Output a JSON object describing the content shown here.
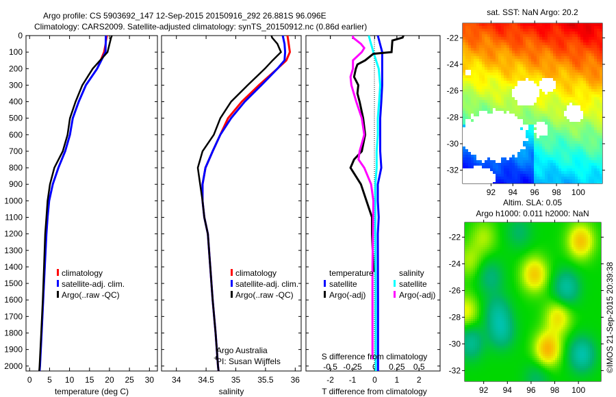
{
  "title_line1": "Argo profile: CS 5903692_147 12-Sep-2015 20150916_292 26.881S 96.096E",
  "title_line2": "Climatology: CARS2009. Satellite-adjusted climatology: synTS_20150912.nc (0.86d earlier)",
  "stamp": "©IMOS 21-Sep-2015 20:39:38",
  "credit": {
    "line1": "Argo Australia",
    "line2": "PI: Susan Wijffels"
  },
  "colors": {
    "climatology": "#ff0000",
    "satellite": "#0000ff",
    "argo": "#000000",
    "sal_satellite": "#00ffff",
    "sal_argo": "#ff00ff"
  },
  "chart_data": [
    {
      "type": "line",
      "name": "temperature-profile",
      "xlabel": "temperature (deg C)",
      "ylabel": "",
      "xlim": [
        -0.9,
        32
      ],
      "ylim": [
        0,
        2030
      ],
      "xticks": [
        "0",
        "5",
        "10",
        "15",
        "20",
        "25",
        "30"
      ],
      "yticks": [
        "0",
        "100",
        "200",
        "300",
        "400",
        "500",
        "600",
        "700",
        "800",
        "900",
        "1000",
        "1100",
        "1200",
        "1300",
        "1400",
        "1500",
        "1600",
        "1700",
        "1800",
        "1900",
        "2000"
      ],
      "legend": [
        "climatology",
        "satellite-adj. clim.",
        "Argo(..raw -QC)"
      ],
      "series": [
        {
          "name": "climatology",
          "depth": [
            0,
            100,
            200,
            300,
            400,
            500,
            600,
            700,
            800,
            900,
            1000,
            1100,
            1200,
            1400,
            1600,
            1800,
            2000,
            2030
          ],
          "values": [
            19.4,
            18.6,
            16.9,
            14.1,
            12.3,
            10.8,
            10.1,
            8.9,
            7.2,
            5.8,
            4.9,
            4.5,
            4.2,
            3.8,
            3.4,
            3.0,
            2.6,
            2.5
          ]
        },
        {
          "name": "satellite-adj. clim.",
          "depth": [
            0,
            100,
            200,
            300,
            400,
            500,
            600,
            700,
            800,
            900,
            1000,
            1100,
            1200,
            1400,
            1600,
            1800,
            2000,
            2030
          ],
          "values": [
            19.1,
            19.0,
            16.9,
            14.1,
            12.3,
            10.8,
            10.1,
            8.9,
            7.2,
            5.8,
            4.9,
            4.5,
            4.2,
            3.8,
            3.4,
            3.0,
            2.6,
            2.5
          ]
        },
        {
          "name": "Argo(..raw -QC)",
          "depth": [
            0,
            12,
            100,
            200,
            300,
            400,
            500,
            600,
            700,
            800,
            900,
            1000,
            1100,
            1200,
            1400,
            1600,
            1800,
            2000,
            2030
          ],
          "values": [
            20.6,
            20.4,
            19.5,
            15.8,
            13.2,
            11.5,
            10.1,
            9.5,
            8.3,
            6.2,
            5.1,
            4.5,
            4.2,
            3.9,
            3.6,
            3.3,
            2.9,
            2.5,
            2.4
          ]
        }
      ]
    },
    {
      "type": "line",
      "name": "salinity-profile",
      "xlabel": "salinity",
      "xlim": [
        33.75,
        36.1
      ],
      "ylim": [
        0,
        2030
      ],
      "xticks": [
        "34",
        "34.5",
        "35",
        "35.5",
        "36"
      ],
      "legend": [
        "climatology",
        "satellite-adj. clim.",
        "Argo(..raw -QC)"
      ],
      "series": [
        {
          "name": "climatology",
          "depth": [
            0,
            50,
            100,
            150,
            200,
            300,
            400,
            500,
            600,
            700,
            800,
            900,
            1000,
            1100,
            1200,
            1400,
            1600,
            1800,
            2000,
            2030
          ],
          "values": [
            35.87,
            35.89,
            35.91,
            35.85,
            35.7,
            35.39,
            35.1,
            34.87,
            34.74,
            34.61,
            34.49,
            34.44,
            34.44,
            34.47,
            34.53,
            34.57,
            34.61,
            34.66,
            34.7,
            34.71
          ]
        },
        {
          "name": "satellite-adj. clim.",
          "depth": [
            0,
            50,
            100,
            150,
            200,
            300,
            400,
            500,
            600,
            700,
            800,
            900,
            1000,
            1100,
            1200,
            1400,
            1600,
            1800,
            2000,
            2030
          ],
          "values": [
            35.79,
            35.82,
            35.83,
            35.82,
            35.7,
            35.43,
            35.15,
            34.92,
            34.74,
            34.61,
            34.49,
            34.44,
            34.44,
            34.47,
            34.53,
            34.57,
            34.61,
            34.66,
            34.7,
            34.71
          ]
        },
        {
          "name": "Argo(..raw -QC)",
          "depth": [
            0,
            12,
            50,
            100,
            150,
            200,
            300,
            400,
            500,
            600,
            700,
            800,
            900,
            1000,
            1100,
            1200,
            1400,
            1600,
            1800,
            2000,
            2030
          ],
          "values": [
            35.6,
            35.61,
            35.7,
            35.76,
            35.62,
            35.49,
            35.2,
            34.92,
            34.74,
            34.63,
            34.44,
            34.36,
            34.4,
            34.44,
            34.47,
            34.53,
            34.57,
            34.61,
            34.66,
            34.7,
            34.71
          ]
        }
      ]
    },
    {
      "type": "line",
      "name": "difference-profile",
      "xlabel": "T difference from climatology",
      "x2label": "S difference from climatology",
      "xlim": [
        -3.1,
        2.95
      ],
      "ylim": [
        0,
        2030
      ],
      "xticks": [
        "-2",
        "-1",
        "0",
        "1",
        "2"
      ],
      "x2ticks": [
        "-0.5",
        "-0.25",
        "0",
        "0.25",
        "0.5"
      ],
      "legend_temperature_title": "temperature",
      "legend_salinity_title": "salinity",
      "legend_temperature": [
        "satellite",
        "Argo(-adj)"
      ],
      "legend_salinity": [
        "satellite",
        "Argo(-adj)"
      ],
      "series": [
        {
          "name": "T satellite",
          "depth": [
            0,
            100,
            200,
            300,
            400,
            500,
            600,
            700,
            800,
            900,
            1000,
            1100,
            1200,
            1600,
            2030
          ],
          "values": [
            0.14,
            0.34,
            0.34,
            0.34,
            0.3,
            0.25,
            0.25,
            0.25,
            0.3,
            0.14,
            0.14,
            0.18,
            0.14,
            0.15,
            0.15
          ]
        },
        {
          "name": "S satellite (x4)",
          "depth": [
            0,
            100,
            200,
            300,
            400,
            500,
            600,
            700,
            800,
            900,
            1000,
            1200,
            1600,
            2030
          ],
          "values": [
            -0.27,
            -0.06,
            0.18,
            0.25,
            0.2,
            0.14,
            0.14,
            0.09,
            0.09,
            0.03,
            0.03,
            0.03,
            0.05,
            0.05
          ]
        },
        {
          "name": "T Argo(-adj)",
          "depth": [
            0,
            12,
            30,
            100,
            110,
            150,
            175,
            200,
            250,
            300,
            350,
            400,
            500,
            600,
            700,
            750,
            800,
            900,
            1000,
            1100,
            1200,
            1430
          ],
          "values": [
            1.3,
            1.26,
            0.8,
            0.76,
            -0.06,
            -0.43,
            -0.78,
            -0.85,
            -0.93,
            -0.74,
            -0.78,
            -0.68,
            -0.52,
            -0.43,
            -0.58,
            -0.93,
            -1.09,
            -0.62,
            -0.37,
            -0.12,
            -0.12,
            -0.05
          ]
        },
        {
          "name": "S Argo(-adj) (x4)",
          "depth": [
            0,
            12,
            50,
            75,
            100,
            150,
            200,
            250,
            300,
            400,
            500,
            600,
            700,
            750,
            800,
            900,
            1000,
            1400,
            1960
          ],
          "values": [
            -0.98,
            -0.98,
            -0.62,
            -0.47,
            -0.58,
            -0.98,
            -0.98,
            -1.09,
            -1.05,
            -0.83,
            -0.58,
            -0.47,
            -0.68,
            -0.73,
            -0.47,
            -0.16,
            -0.06,
            -0.1,
            -0.1
          ]
        }
      ]
    },
    {
      "type": "heatmap",
      "name": "sst-map",
      "title": "sat. SST: NaN Argo: 20.2",
      "lon_range": [
        89.4,
        102.2
      ],
      "lat_range": [
        -33.0,
        -20.9
      ],
      "xticks": [
        "92",
        "94",
        "96",
        "98",
        "100"
      ],
      "yticks": [
        "-22",
        "-24",
        "-26",
        "-28",
        "-30",
        "-32"
      ],
      "nan_regions": [
        [
          92.3,
          -29.4,
          3.0,
          1.9
        ],
        [
          95.2,
          -26.2,
          1.2,
          1.0
        ],
        [
          97.2,
          -25.6,
          0.7,
          0.6
        ],
        [
          90.6,
          -32.6,
          1.8,
          0.9
        ],
        [
          99.6,
          -27.7,
          0.8,
          0.7
        ],
        [
          89.9,
          -24.6,
          0.3,
          0.2
        ],
        [
          96.6,
          -28.9,
          0.6,
          0.6
        ]
      ]
    },
    {
      "type": "heatmap",
      "name": "sla-map",
      "title_line1": "Altim. SLA: 0.05",
      "title_line2": "Argo h1000: 0.011 h2000: NaN",
      "lon_range": [
        90.4,
        101.9
      ],
      "lat_range": [
        -32.8,
        -20.9
      ],
      "xticks": [
        "92",
        "94",
        "96",
        "98",
        "100"
      ],
      "yticks": [
        "-22",
        "-24",
        "-26",
        "-28",
        "-30",
        "-32"
      ],
      "anomalies": [
        [
          100.2,
          -22.3,
          0.9
        ],
        [
          96.3,
          -24.8,
          0.85
        ],
        [
          97.4,
          -30.4,
          1.0
        ],
        [
          98.3,
          -28.0,
          0.7
        ],
        [
          90.5,
          -27.6,
          0.6
        ],
        [
          92.0,
          -22.0,
          0.4
        ],
        [
          90.8,
          -23.8,
          0.4
        ],
        [
          99.0,
          -25.8,
          -0.8
        ],
        [
          100.3,
          -30.8,
          -0.9
        ],
        [
          93.5,
          -29.1,
          -0.7
        ],
        [
          93.2,
          -27.6,
          -0.6
        ],
        [
          90.9,
          -29.9,
          -0.7
        ],
        [
          92.6,
          -25.0,
          -0.5
        ],
        [
          95.0,
          -21.6,
          -0.4
        ],
        [
          96.5,
          -32.6,
          -0.4
        ]
      ]
    }
  ]
}
